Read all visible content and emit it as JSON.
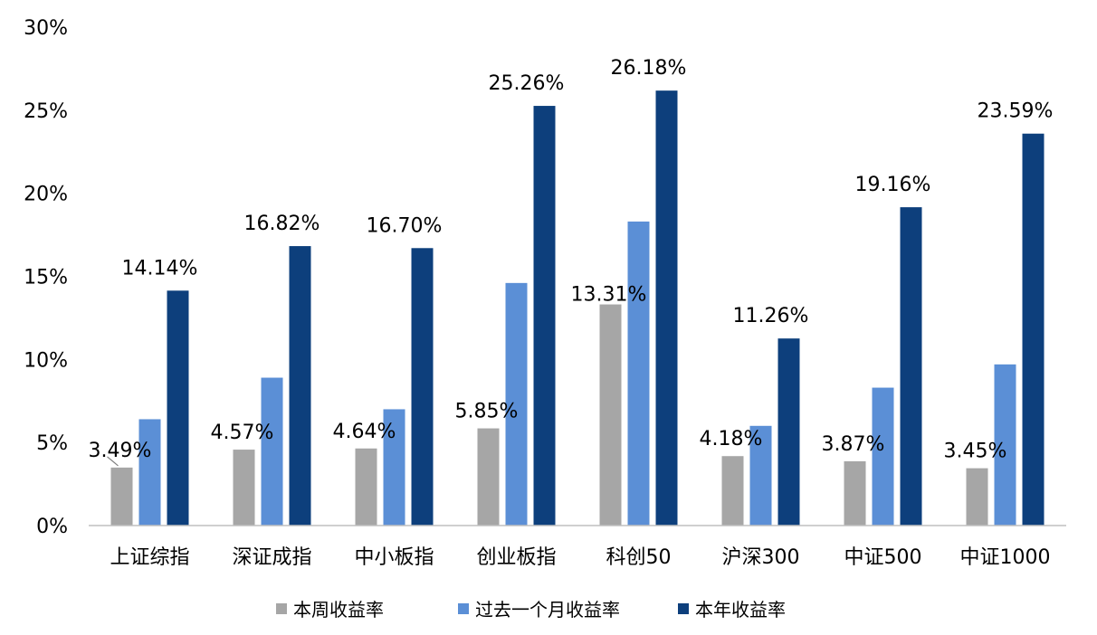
{
  "chart_data": {
    "type": "bar",
    "title": "",
    "xlabel": "",
    "ylabel": "",
    "ylim": [
      0,
      30
    ],
    "y_ticks": [
      "0%",
      "5%",
      "10%",
      "15%",
      "20%",
      "25%",
      "30%"
    ],
    "grid": false,
    "legend_position": "bottom",
    "categories": [
      "上证综指",
      "深证成指",
      "中小板指",
      "创业板指",
      "科创50",
      "沪深300",
      "中证500",
      "中证1000"
    ],
    "series": [
      {
        "name": "本周收益率",
        "color": "#a6a6a6",
        "values": [
          3.49,
          4.57,
          4.64,
          5.85,
          13.31,
          4.18,
          3.87,
          3.45
        ],
        "labels": [
          "3.49%",
          "4.57%",
          "4.64%",
          "5.85%",
          "13.31%",
          "4.18%",
          "3.87%",
          "3.45%"
        ]
      },
      {
        "name": "过去一个月收益率",
        "color": "#5b8fd6",
        "values": [
          6.4,
          8.9,
          7.0,
          14.6,
          18.3,
          6.0,
          8.3,
          9.7
        ],
        "labels": []
      },
      {
        "name": "本年收益率",
        "color": "#0d3f7c",
        "values": [
          14.14,
          16.82,
          16.7,
          25.26,
          26.18,
          11.26,
          19.16,
          23.59
        ],
        "labels": [
          "14.14%",
          "16.82%",
          "16.70%",
          "25.26%",
          "26.18%",
          "11.26%",
          "19.16%",
          "23.59%"
        ]
      }
    ]
  }
}
